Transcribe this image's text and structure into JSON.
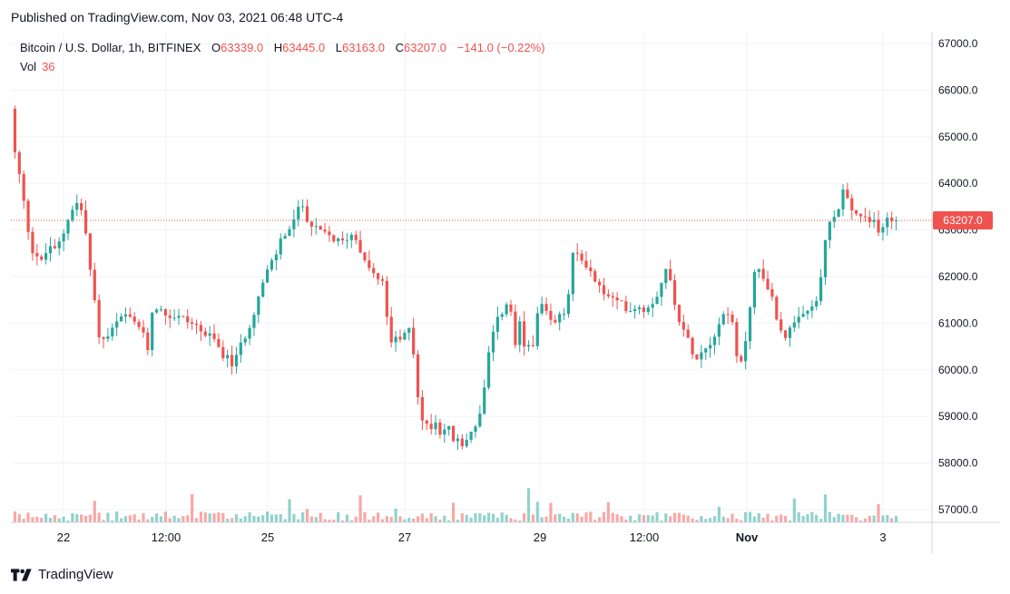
{
  "published": "Published on TradingView.com, Nov 03, 2021 06:48 UTC-4",
  "header": {
    "symbol": "Bitcoin / U.S. Dollar, 1h, BITFINEX",
    "o_label": "O",
    "o_value": "63339.0",
    "h_label": "H",
    "h_value": "63445.0",
    "l_label": "L",
    "l_value": "63163.0",
    "c_label": "C",
    "c_value": "63207.0",
    "change": "−141.0 (−0.22%)"
  },
  "volume": {
    "label": "Vol",
    "value": "36"
  },
  "last_price_tag": "63207.0",
  "footer": {
    "brand": "TradingView",
    "logo_icon": "tradingview-logo-icon"
  },
  "colors": {
    "up": "#26a69a",
    "down": "#ef5350",
    "grid": "#f0f3fa",
    "text": "#131722"
  },
  "chart_data": {
    "type": "candlestick",
    "title": "Bitcoin / U.S. Dollar, 1h, BITFINEX",
    "ylim": [
      56800,
      67300
    ],
    "y_ticks": [
      "57000.0",
      "58000.0",
      "59000.0",
      "60000.0",
      "61000.0",
      "62000.0",
      "63000.0",
      "64000.0",
      "65000.0",
      "66000.0",
      "67000.0"
    ],
    "x_ticks": [
      "22",
      "12:00",
      "25",
      "27",
      "29",
      "12:00",
      "Nov",
      "3"
    ],
    "grid": true,
    "last_price": 63207,
    "price_path": [
      [
        0,
        66200
      ],
      [
        2,
        65600
      ],
      [
        6,
        64700
      ],
      [
        9,
        64500
      ],
      [
        14,
        63900
      ],
      [
        19,
        63300
      ],
      [
        25,
        62600
      ],
      [
        30,
        62500
      ],
      [
        36,
        62300
      ],
      [
        41,
        62500
      ],
      [
        47,
        62700
      ],
      [
        52,
        62500
      ],
      [
        57,
        62800
      ],
      [
        62,
        63000
      ],
      [
        66,
        63300
      ],
      [
        71,
        63500
      ],
      [
        77,
        63600
      ],
      [
        82,
        63300
      ],
      [
        86,
        62800
      ],
      [
        90,
        62100
      ],
      [
        95,
        61400
      ],
      [
        100,
        60700
      ],
      [
        103,
        60600
      ],
      [
        108,
        60700
      ],
      [
        113,
        60800
      ],
      [
        118,
        61000
      ],
      [
        122,
        61000
      ],
      [
        127,
        61200
      ],
      [
        132,
        61100
      ],
      [
        137,
        61000
      ],
      [
        142,
        61000
      ],
      [
        147,
        60800
      ],
      [
        152,
        60500
      ],
      [
        155,
        60400
      ],
      [
        157,
        61200
      ],
      [
        161,
        61400
      ],
      [
        166,
        61300
      ],
      [
        171,
        61200
      ],
      [
        176,
        61200
      ],
      [
        180,
        61100
      ],
      [
        185,
        61200
      ],
      [
        190,
        61100
      ],
      [
        195,
        61100
      ],
      [
        199,
        61000
      ],
      [
        204,
        61000
      ],
      [
        209,
        60900
      ],
      [
        214,
        60800
      ],
      [
        219,
        60700
      ],
      [
        223,
        60700
      ],
      [
        228,
        60600
      ],
      [
        233,
        60400
      ],
      [
        238,
        60300
      ],
      [
        243,
        60200
      ],
      [
        247,
        60100
      ],
      [
        252,
        60300
      ],
      [
        257,
        60600
      ],
      [
        262,
        60800
      ],
      [
        266,
        61000
      ],
      [
        271,
        61300
      ],
      [
        276,
        61600
      ],
      [
        281,
        61900
      ],
      [
        285,
        62100
      ],
      [
        290,
        62300
      ],
      [
        295,
        62500
      ],
      [
        300,
        62800
      ],
      [
        304,
        62900
      ],
      [
        309,
        63000
      ],
      [
        314,
        63200
      ],
      [
        319,
        63400
      ],
      [
        323,
        63600
      ],
      [
        328,
        63300
      ],
      [
        333,
        63100
      ],
      [
        338,
        63000
      ],
      [
        342,
        63000
      ],
      [
        347,
        62900
      ],
      [
        352,
        62900
      ],
      [
        357,
        62800
      ],
      [
        361,
        62800
      ],
      [
        366,
        62700
      ],
      [
        371,
        62800
      ],
      [
        376,
        62900
      ],
      [
        381,
        62900
      ],
      [
        385,
        62700
      ],
      [
        390,
        62500
      ],
      [
        395,
        62300
      ],
      [
        400,
        62100
      ],
      [
        404,
        62000
      ],
      [
        409,
        61900
      ],
      [
        414,
        61800
      ],
      [
        418,
        60900
      ],
      [
        422,
        60500
      ],
      [
        428,
        60700
      ],
      [
        433,
        60600
      ],
      [
        438,
        60800
      ],
      [
        442,
        61000
      ],
      [
        446,
        60400
      ],
      [
        450,
        59600
      ],
      [
        455,
        58900
      ],
      [
        460,
        58800
      ],
      [
        465,
        58800
      ],
      [
        470,
        58900
      ],
      [
        474,
        58700
      ],
      [
        479,
        58700
      ],
      [
        484,
        58800
      ],
      [
        489,
        58500
      ],
      [
        494,
        58500
      ],
      [
        498,
        58300
      ],
      [
        503,
        58500
      ],
      [
        508,
        58600
      ],
      [
        513,
        58800
      ],
      [
        517,
        58900
      ],
      [
        522,
        59200
      ],
      [
        527,
        60100
      ],
      [
        532,
        60600
      ],
      [
        536,
        60900
      ],
      [
        541,
        61200
      ],
      [
        546,
        61300
      ],
      [
        550,
        61400
      ],
      [
        555,
        61200
      ],
      [
        559,
        60300
      ],
      [
        563,
        61000
      ],
      [
        568,
        60500
      ],
      [
        573,
        60500
      ],
      [
        578,
        60600
      ],
      [
        582,
        61100
      ],
      [
        587,
        61400
      ],
      [
        592,
        61200
      ],
      [
        597,
        61000
      ],
      [
        601,
        61000
      ],
      [
        606,
        61100
      ],
      [
        611,
        61200
      ],
      [
        616,
        61400
      ],
      [
        620,
        62400
      ],
      [
        625,
        62500
      ],
      [
        630,
        62400
      ],
      [
        635,
        62300
      ],
      [
        639,
        62200
      ],
      [
        644,
        62000
      ],
      [
        649,
        61800
      ],
      [
        654,
        61700
      ],
      [
        659,
        61600
      ],
      [
        663,
        61500
      ],
      [
        668,
        61500
      ],
      [
        673,
        61400
      ],
      [
        678,
        61400
      ],
      [
        682,
        61300
      ],
      [
        687,
        61300
      ],
      [
        692,
        61400
      ],
      [
        697,
        61300
      ],
      [
        702,
        61300
      ],
      [
        706,
        61400
      ],
      [
        711,
        61500
      ],
      [
        716,
        61700
      ],
      [
        721,
        62000
      ],
      [
        726,
        62200
      ],
      [
        730,
        61800
      ],
      [
        735,
        61400
      ],
      [
        740,
        61000
      ],
      [
        745,
        60800
      ],
      [
        749,
        60600
      ],
      [
        754,
        60400
      ],
      [
        759,
        60300
      ],
      [
        764,
        60400
      ],
      [
        768,
        60500
      ],
      [
        773,
        60600
      ],
      [
        778,
        60800
      ],
      [
        783,
        61000
      ],
      [
        788,
        61200
      ],
      [
        792,
        61300
      ],
      [
        797,
        61000
      ],
      [
        802,
        60300
      ],
      [
        806,
        60000
      ],
      [
        811,
        60500
      ],
      [
        816,
        61200
      ],
      [
        820,
        62000
      ],
      [
        825,
        62200
      ],
      [
        830,
        62000
      ],
      [
        835,
        61900
      ],
      [
        840,
        61600
      ],
      [
        845,
        61200
      ],
      [
        849,
        61000
      ],
      [
        854,
        60700
      ],
      [
        859,
        60800
      ],
      [
        864,
        60900
      ],
      [
        868,
        61000
      ],
      [
        873,
        61100
      ],
      [
        878,
        61200
      ],
      [
        883,
        61300
      ],
      [
        888,
        61400
      ],
      [
        892,
        61600
      ],
      [
        897,
        62100
      ],
      [
        901,
        63000
      ],
      [
        906,
        63200
      ],
      [
        911,
        63300
      ],
      [
        916,
        63500
      ],
      [
        920,
        63900
      ],
      [
        925,
        63600
      ],
      [
        930,
        63400
      ],
      [
        935,
        63300
      ],
      [
        939,
        63300
      ],
      [
        944,
        63200
      ],
      [
        949,
        63100
      ],
      [
        954,
        63200
      ],
      [
        959,
        63000
      ],
      [
        963,
        63100
      ],
      [
        968,
        63300
      ],
      [
        973,
        63200
      ],
      [
        978,
        63207
      ]
    ]
  }
}
